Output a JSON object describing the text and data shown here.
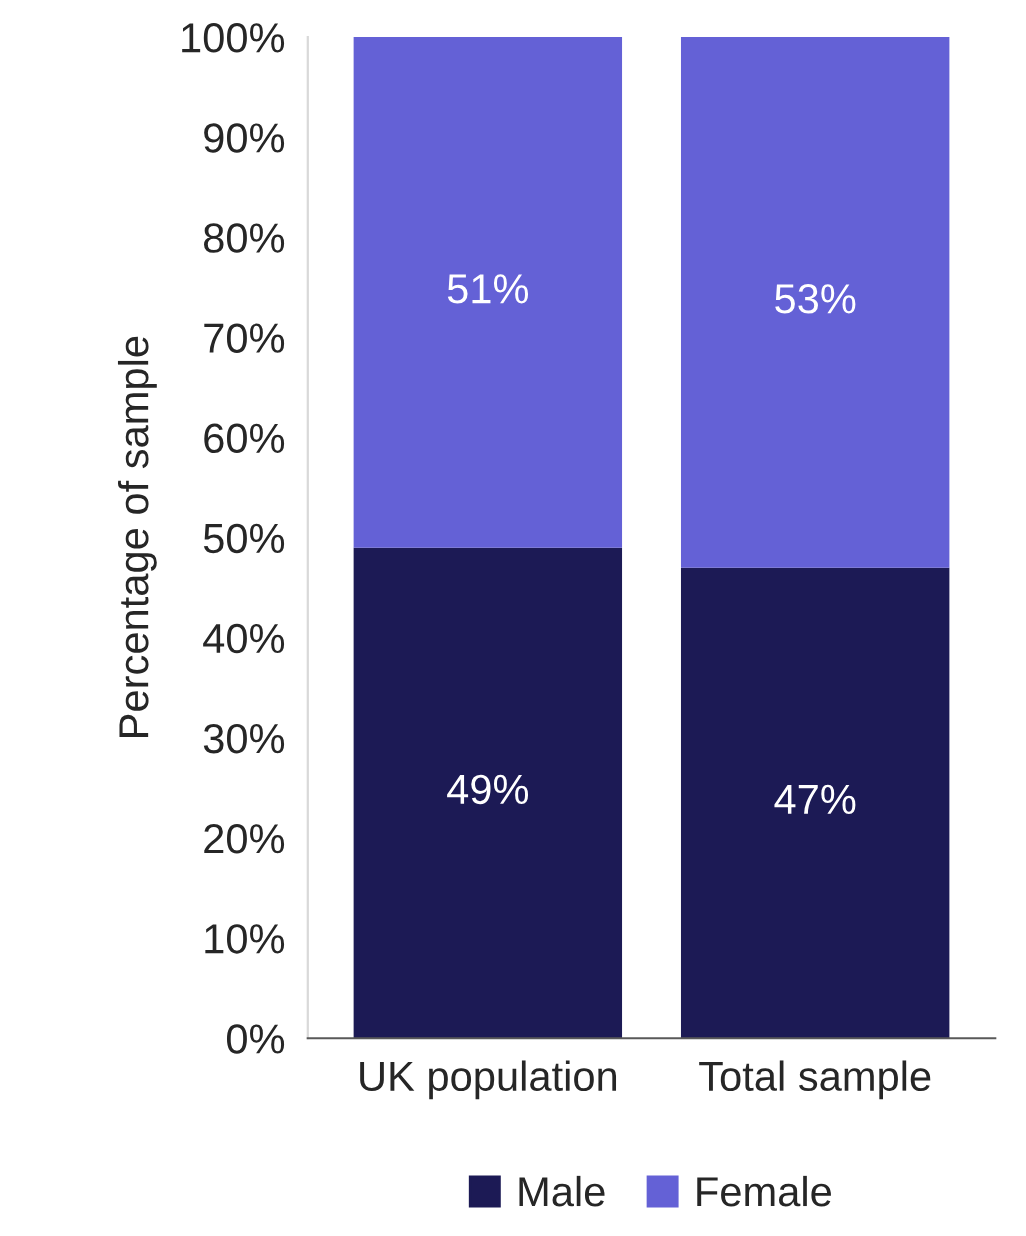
{
  "chart_data": {
    "type": "bar",
    "stacked": true,
    "ylabel": "Percentage of sample",
    "categories": [
      "UK population",
      "Total sample"
    ],
    "series": [
      {
        "name": "Male",
        "color": "#1c1a55",
        "values": [
          49,
          47
        ],
        "value_labels": [
          "49%",
          "47%"
        ]
      },
      {
        "name": "Female",
        "color": "#6461d6",
        "values": [
          51,
          53
        ],
        "value_labels": [
          "51%",
          "53%"
        ]
      }
    ],
    "ylim": [
      0,
      100
    ],
    "yticks": [
      {
        "value": 0,
        "label": "0%"
      },
      {
        "value": 10,
        "label": "10%"
      },
      {
        "value": 20,
        "label": "20%"
      },
      {
        "value": 30,
        "label": "30%"
      },
      {
        "value": 40,
        "label": "40%"
      },
      {
        "value": 50,
        "label": "50%"
      },
      {
        "value": 60,
        "label": "60%"
      },
      {
        "value": 70,
        "label": "70%"
      },
      {
        "value": 80,
        "label": "80%"
      },
      {
        "value": 90,
        "label": "90%"
      },
      {
        "value": 100,
        "label": "100%"
      }
    ],
    "grid": false,
    "legend": "bottom"
  }
}
